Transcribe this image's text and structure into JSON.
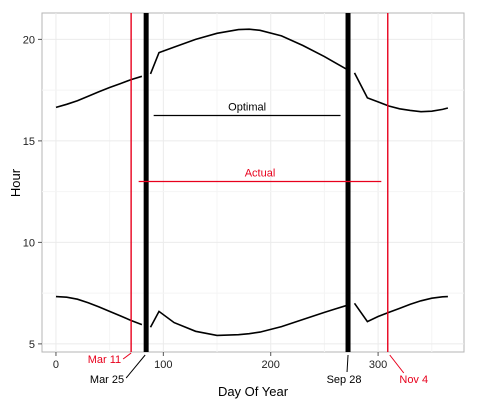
{
  "chart_data": {
    "type": "line",
    "title": "",
    "xlabel": "Day Of Year",
    "ylabel": "Hour",
    "xlim": [
      -13,
      380
    ],
    "ylim": [
      4.6,
      21.3
    ],
    "x_ticks": [
      0,
      100,
      200,
      300
    ],
    "y_ticks": [
      5,
      10,
      15,
      20
    ],
    "grid": true,
    "legend": "none",
    "series": [
      {
        "role": "sunset",
        "color": "#000000",
        "x": [
          0,
          10,
          20,
          30,
          40,
          50,
          60,
          70,
          80,
          88,
          96,
          110,
          130,
          150,
          170,
          180,
          190,
          210,
          230,
          250,
          260,
          270,
          278,
          290,
          300,
          310,
          320,
          330,
          340,
          350,
          360,
          365
        ],
        "y": [
          16.65,
          16.8,
          16.98,
          17.2,
          17.42,
          17.63,
          17.82,
          18.02,
          18.18,
          18.3,
          19.35,
          19.62,
          20.0,
          20.3,
          20.48,
          20.5,
          20.45,
          20.17,
          19.7,
          19.15,
          18.85,
          18.55,
          18.35,
          17.12,
          16.92,
          16.72,
          16.58,
          16.5,
          16.44,
          16.46,
          16.55,
          16.62
        ]
      },
      {
        "role": "sunrise",
        "color": "#000000",
        "x": [
          0,
          10,
          20,
          30,
          40,
          50,
          60,
          70,
          80,
          88,
          96,
          110,
          130,
          150,
          170,
          180,
          190,
          210,
          230,
          250,
          260,
          270,
          278,
          290,
          300,
          310,
          320,
          330,
          340,
          350,
          360,
          365
        ],
        "y": [
          7.33,
          7.3,
          7.2,
          7.03,
          6.82,
          6.6,
          6.38,
          6.15,
          5.95,
          5.82,
          6.6,
          6.05,
          5.62,
          5.42,
          5.45,
          5.5,
          5.58,
          5.85,
          6.2,
          6.55,
          6.72,
          6.88,
          7.0,
          6.1,
          6.35,
          6.55,
          6.75,
          6.95,
          7.12,
          7.25,
          7.32,
          7.33
        ]
      }
    ],
    "vertical_lines": [
      {
        "x": 70,
        "label": "Mar 11",
        "color": "#e8001c",
        "width": "thin"
      },
      {
        "x": 84,
        "label": "Mar 25",
        "color": "#000000",
        "width": "thick"
      },
      {
        "x": 272,
        "label": "Sep 28",
        "color": "#000000",
        "width": "thick"
      },
      {
        "x": 309,
        "label": "Nov 4",
        "color": "#e8001c",
        "width": "thin"
      }
    ],
    "segments": [
      {
        "label": "Optimal",
        "x1": 91,
        "x2": 265,
        "y": 16.25,
        "color": "#000000"
      },
      {
        "label": "Actual",
        "x1": 77,
        "x2": 303,
        "y": 13.0,
        "color": "#e8001c"
      }
    ]
  }
}
